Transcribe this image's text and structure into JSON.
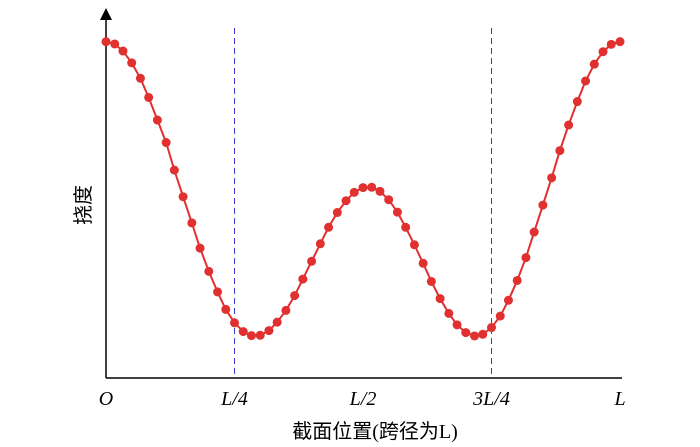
{
  "chart_data": {
    "type": "line",
    "xlabel": "截面位置(跨径为L)",
    "ylabel": "挠度",
    "xlim": [
      0,
      1
    ],
    "xticks": [
      {
        "value": 0,
        "label": "O"
      },
      {
        "value": 0.25,
        "label": "L/4"
      },
      {
        "value": 0.5,
        "label": "L/2"
      },
      {
        "value": 0.75,
        "label": "3L/4"
      },
      {
        "value": 1,
        "label": "L"
      }
    ],
    "ylim": [
      0,
      110
    ],
    "vlines": [
      0.25,
      0.75
    ],
    "vline_color": "#3a3ad0",
    "x": [
      0,
      0.017,
      0.033,
      0.05,
      0.067,
      0.083,
      0.1,
      0.117,
      0.133,
      0.15,
      0.167,
      0.183,
      0.2,
      0.217,
      0.233,
      0.25,
      0.267,
      0.283,
      0.3,
      0.317,
      0.333,
      0.35,
      0.367,
      0.383,
      0.4,
      0.417,
      0.433,
      0.45,
      0.467,
      0.483,
      0.5,
      0.517,
      0.533,
      0.55,
      0.567,
      0.583,
      0.6,
      0.617,
      0.633,
      0.65,
      0.667,
      0.683,
      0.7,
      0.717,
      0.733,
      0.75,
      0.767,
      0.783,
      0.8,
      0.817,
      0.833,
      0.85,
      0.867,
      0.883,
      0.9,
      0.917,
      0.933,
      0.95,
      0.967,
      0.983,
      1
    ],
    "series": [
      {
        "color": "#e03030",
        "values": [
          100,
          99.3,
          97.2,
          93.7,
          89.1,
          83.4,
          76.7,
          70.0,
          61.8,
          53.9,
          46.1,
          38.6,
          31.7,
          25.6,
          20.4,
          16.4,
          13.8,
          12.6,
          12.7,
          14.1,
          16.6,
          20.1,
          24.5,
          29.4,
          34.7,
          39.9,
          44.8,
          49.2,
          52.7,
          55.2,
          56.6,
          56.7,
          55.5,
          53.0,
          49.3,
          44.8,
          39.6,
          34.1,
          28.7,
          23.6,
          19.2,
          15.8,
          13.5,
          12.5,
          13.0,
          15.0,
          18.4,
          23.1,
          29.0,
          35.8,
          43.4,
          51.4,
          59.5,
          67.6,
          75.2,
          82.2,
          88.3,
          93.3,
          97.0,
          99.2,
          100
        ]
      }
    ]
  }
}
